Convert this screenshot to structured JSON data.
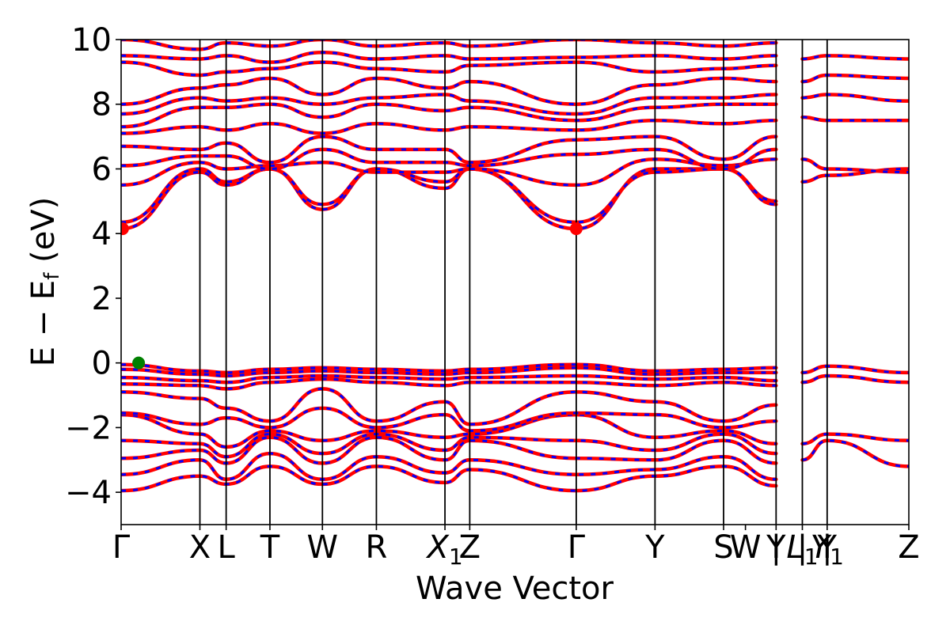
{
  "chart_data": {
    "type": "line",
    "title": "",
    "xlabel": "Wave Vector",
    "ylabel": "E − E_f (eV)",
    "ylabel_main": "E − E",
    "ylabel_sub": "f",
    "ylabel_unit": " (eV)",
    "ylim": [
      -5,
      10
    ],
    "xlim": [
      0,
      27
    ],
    "y_ticks": [
      -4,
      -2,
      0,
      2,
      4,
      6,
      8,
      10
    ],
    "y_tick_labels": [
      "−4",
      "−2",
      "0",
      "2",
      "4",
      "6",
      "8",
      "10"
    ],
    "grid": false,
    "legend": "none",
    "colors": {
      "band_solid": "#ff0000",
      "band_dash": "#0000ff",
      "vbm_marker": "#008000",
      "cbm_marker": "#ff0000",
      "kpath_line": "#000000"
    },
    "kpoints": [
      {
        "label": "Γ",
        "sub": "",
        "x": 0.0
      },
      {
        "label": "X",
        "sub": "",
        "x": 2.7
      },
      {
        "label": "L",
        "sub": "",
        "x": 3.6
      },
      {
        "label": "T",
        "sub": "",
        "x": 5.1
      },
      {
        "label": "W",
        "sub": "",
        "x": 6.9
      },
      {
        "label": "R",
        "sub": "",
        "x": 8.75
      },
      {
        "label": "X",
        "sub": "1",
        "x": 11.1
      },
      {
        "label": "Z",
        "sub": "",
        "x": 11.95
      },
      {
        "label": "Γ",
        "sub": "",
        "x": 15.6
      },
      {
        "label": "Y",
        "sub": "",
        "x": 18.3
      },
      {
        "label": "S",
        "sub": "",
        "x": 20.65
      },
      {
        "label": "W",
        "sub": "",
        "x": 21.4
      },
      {
        "label": "Y",
        "sub": "",
        "x": 22.45
      },
      {
        "label": "|",
        "sub": "",
        "x": 22.45
      },
      {
        "label": "L",
        "sub": "1",
        "x": 23.35
      },
      {
        "label": "|",
        "sub": "",
        "x": 23.35
      },
      {
        "label": "Y",
        "sub": "",
        "x": 24.2
      },
      {
        "label": "|",
        "sub": "",
        "x": 24.2
      },
      {
        "label": "Y",
        "sub": "1",
        "x": 24.2
      },
      {
        "label": "Z",
        "sub": "",
        "x": 27.0
      }
    ],
    "x_vlines": [
      2.7,
      3.6,
      5.1,
      6.9,
      8.75,
      11.1,
      11.95,
      15.6,
      18.3,
      20.65,
      22.45,
      23.35,
      24.2
    ],
    "markers": [
      {
        "name": "valence-band-maximum",
        "x": 0.6,
        "y": 0.0,
        "color": "#008000"
      },
      {
        "name": "conduction-band-minimum-gamma",
        "x": 0.05,
        "y": 4.15,
        "color": "#ff0000"
      },
      {
        "name": "conduction-band-minimum",
        "x": 15.6,
        "y": 4.15,
        "color": "#ff0000"
      }
    ],
    "series": [
      {
        "x": [
          0,
          2.7,
          3.6,
          5.1,
          6.9,
          8.75,
          11.1,
          11.95,
          15.6,
          18.3,
          20.65,
          22.45
        ],
        "values": [
          -3.95,
          -3.5,
          -3.75,
          -3.2,
          -3.75,
          -3.2,
          -3.7,
          -3.3,
          -3.95,
          -3.5,
          -3.2,
          -3.8
        ]
      },
      {
        "x": [
          0,
          2.7,
          3.6,
          5.1,
          6.9,
          8.75,
          11.1,
          11.95,
          15.6,
          18.3,
          20.65,
          22.45
        ],
        "values": [
          -3.45,
          -3.0,
          -3.6,
          -2.8,
          -3.6,
          -2.9,
          -3.4,
          -3.0,
          -3.45,
          -3.3,
          -2.9,
          -3.6
        ]
      },
      {
        "x": [
          0,
          2.7,
          3.6,
          5.1,
          6.9,
          8.75,
          11.1,
          11.95,
          15.6,
          18.3,
          20.65,
          22.45
        ],
        "values": [
          -2.95,
          -2.7,
          -3.1,
          -2.3,
          -3.1,
          -2.3,
          -3.0,
          -2.4,
          -2.95,
          -3.0,
          -2.4,
          -3.1
        ]
      },
      {
        "x": [
          0,
          2.7,
          3.6,
          5.1,
          6.9,
          8.75,
          11.1,
          11.95,
          15.6,
          18.3,
          20.65,
          22.45
        ],
        "values": [
          -2.4,
          -2.5,
          -2.9,
          -2.2,
          -2.8,
          -2.2,
          -2.7,
          -2.3,
          -2.4,
          -2.7,
          -2.2,
          -2.8
        ]
      },
      {
        "x": [
          0,
          2.7,
          3.6,
          5.1,
          6.9,
          8.75,
          11.1,
          11.95,
          15.6,
          18.3,
          20.65,
          22.45
        ],
        "values": [
          -1.6,
          -2.2,
          -2.6,
          -2.1,
          -2.4,
          -2.1,
          -2.3,
          -2.2,
          -1.6,
          -2.3,
          -2.1,
          -2.5
        ]
      },
      {
        "x": [
          0,
          2.7,
          3.6,
          5.1,
          6.9,
          8.75,
          11.1,
          11.95,
          15.6,
          18.3,
          20.65,
          22.45
        ],
        "values": [
          -1.55,
          -1.9,
          -1.7,
          -2.0,
          -1.4,
          -2.0,
          -1.6,
          -2.1,
          -1.55,
          -1.6,
          -2.0,
          -1.8
        ]
      },
      {
        "x": [
          0,
          2.7,
          3.6,
          5.1,
          6.9,
          8.75,
          11.1,
          11.95,
          15.6,
          18.3,
          20.65,
          22.45
        ],
        "values": [
          -0.9,
          -1.1,
          -1.4,
          -1.8,
          -0.8,
          -1.8,
          -1.2,
          -1.9,
          -0.9,
          -1.2,
          -1.8,
          -1.3
        ]
      },
      {
        "x": [
          0,
          2.7,
          3.6,
          5.1,
          6.9,
          8.75,
          11.1,
          11.95,
          15.6,
          18.3,
          20.65,
          22.45
        ],
        "values": [
          -0.65,
          -0.7,
          -0.8,
          -0.6,
          -0.5,
          -0.6,
          -0.7,
          -0.6,
          -0.6,
          -0.7,
          -0.6,
          -0.7
        ]
      },
      {
        "x": [
          0,
          2.7,
          3.6,
          5.1,
          6.9,
          8.75,
          11.1,
          11.95,
          15.6,
          18.3,
          20.65,
          22.45
        ],
        "values": [
          -0.45,
          -0.55,
          -0.6,
          -0.45,
          -0.4,
          -0.45,
          -0.5,
          -0.45,
          -0.4,
          -0.5,
          -0.45,
          -0.55
        ]
      },
      {
        "x": [
          0,
          2.7,
          3.6,
          5.1,
          6.9,
          8.75,
          11.1,
          11.95,
          15.6,
          18.3,
          20.65,
          22.45
        ],
        "values": [
          -0.2,
          -0.35,
          -0.4,
          -0.3,
          -0.25,
          -0.3,
          -0.35,
          -0.3,
          -0.15,
          -0.35,
          -0.3,
          -0.3
        ]
      },
      {
        "x": [
          0,
          2.7,
          3.6,
          5.1,
          6.9,
          8.75,
          11.1,
          11.95,
          15.6,
          18.3,
          20.65,
          22.45
        ],
        "values": [
          -0.05,
          -0.25,
          -0.3,
          -0.2,
          -0.15,
          -0.2,
          -0.25,
          -0.2,
          -0.05,
          -0.25,
          -0.2,
          -0.15
        ]
      },
      {
        "x": [
          0,
          2.7,
          3.6,
          5.1,
          6.9,
          8.75,
          11.1,
          11.95,
          15.6,
          18.3,
          20.65,
          22.45
        ],
        "values": [
          4.15,
          5.9,
          5.5,
          6.0,
          4.75,
          6.0,
          5.4,
          6.0,
          4.15,
          6.0,
          6.0,
          4.9
        ]
      },
      {
        "x": [
          0,
          2.7,
          3.6,
          5.1,
          6.9,
          8.75,
          11.1,
          11.95,
          15.6,
          18.3,
          20.65,
          22.45
        ],
        "values": [
          4.35,
          6.0,
          5.6,
          6.0,
          4.9,
          6.0,
          5.6,
          6.0,
          4.35,
          5.9,
          6.0,
          5.0
        ]
      },
      {
        "x": [
          0,
          2.7,
          3.6,
          5.1,
          6.9,
          8.75,
          11.1,
          11.95,
          15.6,
          18.3,
          20.65,
          22.45
        ],
        "values": [
          5.5,
          6.2,
          6.0,
          6.1,
          6.2,
          5.9,
          5.9,
          6.0,
          5.5,
          6.3,
          6.1,
          6.3
        ]
      },
      {
        "x": [
          0,
          2.7,
          3.6,
          5.1,
          6.9,
          8.75,
          11.1,
          11.95,
          15.6,
          18.3,
          20.65,
          22.45
        ],
        "values": [
          6.1,
          6.4,
          6.4,
          6.0,
          6.6,
          6.2,
          6.2,
          6.1,
          6.45,
          6.6,
          6.0,
          6.6
        ]
      },
      {
        "x": [
          0,
          2.7,
          3.6,
          5.1,
          6.9,
          8.75,
          11.1,
          11.95,
          15.6,
          18.3,
          20.65,
          22.45
        ],
        "values": [
          6.7,
          6.6,
          6.8,
          6.2,
          7.0,
          6.6,
          6.6,
          6.2,
          6.9,
          7.0,
          6.3,
          7.0
        ]
      },
      {
        "x": [
          0,
          2.7,
          3.6,
          5.1,
          6.9,
          8.75,
          11.1,
          11.95,
          15.6,
          18.3,
          20.65,
          22.45
        ],
        "values": [
          7.1,
          7.3,
          7.2,
          7.4,
          7.1,
          7.4,
          7.2,
          7.3,
          7.2,
          7.5,
          7.4,
          7.5
        ]
      },
      {
        "x": [
          0,
          2.7,
          3.6,
          5.1,
          6.9,
          8.75,
          11.1,
          11.95,
          15.6,
          18.3,
          20.65,
          22.45
        ],
        "values": [
          7.3,
          7.9,
          7.9,
          8.0,
          7.6,
          8.0,
          7.8,
          7.9,
          7.5,
          7.9,
          8.0,
          8.0
        ]
      },
      {
        "x": [
          0,
          2.7,
          3.6,
          5.1,
          6.9,
          8.75,
          11.1,
          11.95,
          15.6,
          18.3,
          20.65,
          22.45
        ],
        "values": [
          7.7,
          8.2,
          8.1,
          8.2,
          8.0,
          8.2,
          8.3,
          8.1,
          7.7,
          8.2,
          8.2,
          8.3
        ]
      },
      {
        "x": [
          0,
          2.7,
          3.6,
          5.1,
          6.9,
          8.75,
          11.1,
          11.95,
          15.6,
          18.3,
          20.65,
          22.45
        ],
        "values": [
          8.0,
          8.5,
          8.6,
          8.8,
          8.3,
          8.8,
          8.5,
          8.7,
          8.0,
          8.6,
          8.8,
          8.7
        ]
      },
      {
        "x": [
          0,
          2.7,
          3.6,
          5.1,
          6.9,
          8.75,
          11.1,
          11.95,
          15.6,
          18.3,
          20.65,
          22.45
        ],
        "values": [
          9.3,
          8.9,
          9.0,
          9.1,
          9.3,
          9.1,
          9.0,
          9.2,
          9.3,
          9.0,
          9.1,
          9.2
        ]
      },
      {
        "x": [
          0,
          2.7,
          3.6,
          5.1,
          6.9,
          8.75,
          11.1,
          11.95,
          15.6,
          18.3,
          20.65,
          22.45
        ],
        "values": [
          9.5,
          9.4,
          9.5,
          9.3,
          9.6,
          9.4,
          9.5,
          9.4,
          9.45,
          9.5,
          9.4,
          9.5
        ]
      },
      {
        "x": [
          0,
          2.7,
          3.6,
          5.1,
          6.9,
          8.75,
          11.1,
          11.95,
          15.6,
          18.3,
          20.65,
          22.45
        ],
        "values": [
          10.0,
          9.7,
          9.9,
          9.8,
          10.0,
          9.8,
          9.9,
          9.8,
          10.0,
          9.9,
          9.8,
          9.9
        ]
      },
      {
        "x": [
          23.35,
          24.2,
          27.0
        ],
        "values": [
          -3.0,
          -2.4,
          -3.2
        ]
      },
      {
        "x": [
          23.35,
          24.2,
          27.0
        ],
        "values": [
          -2.5,
          -2.2,
          -2.4
        ]
      },
      {
        "x": [
          23.35,
          24.2,
          27.0
        ],
        "values": [
          -0.6,
          -0.4,
          -0.6
        ]
      },
      {
        "x": [
          23.35,
          24.2,
          27.0
        ],
        "values": [
          -0.3,
          -0.1,
          -0.3
        ]
      },
      {
        "x": [
          23.35,
          24.2,
          27.0
        ],
        "values": [
          5.6,
          5.8,
          6.0
        ]
      },
      {
        "x": [
          23.35,
          24.2,
          27.0
        ],
        "values": [
          6.3,
          6.0,
          5.9
        ]
      },
      {
        "x": [
          23.35,
          24.2,
          27.0
        ],
        "values": [
          7.6,
          7.5,
          7.5
        ]
      },
      {
        "x": [
          23.35,
          24.2,
          27.0
        ],
        "values": [
          8.2,
          8.3,
          8.1
        ]
      },
      {
        "x": [
          23.35,
          24.2,
          27.0
        ],
        "values": [
          8.7,
          8.9,
          8.8
        ]
      },
      {
        "x": [
          23.35,
          24.2,
          27.0
        ],
        "values": [
          9.4,
          9.5,
          9.4
        ]
      }
    ]
  }
}
